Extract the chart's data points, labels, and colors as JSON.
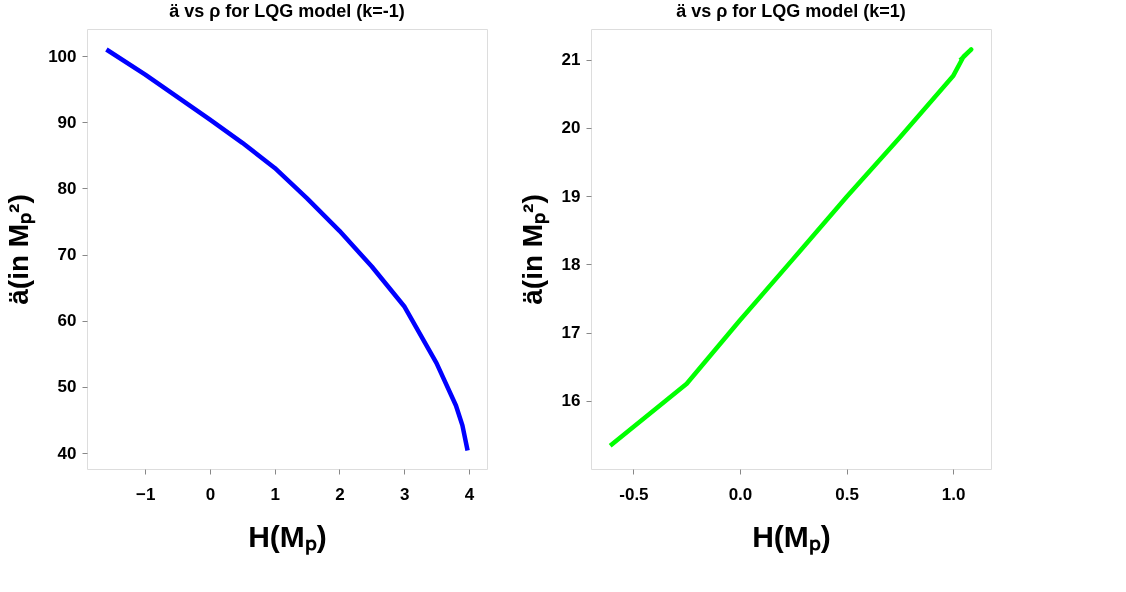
{
  "chart_data": [
    {
      "type": "line",
      "title": "ä vs ρ for LQG model (k=-1)",
      "xlabel": "H(Mₚ)",
      "ylabel": "ä(in Mₚ²)",
      "x": [
        -1.6,
        -1.0,
        0.0,
        0.5,
        1.0,
        1.5,
        2.0,
        2.5,
        3.0,
        3.5,
        3.8,
        3.9,
        3.98
      ],
      "series": [
        {
          "color": "#0000ff",
          "values": [
            101.0,
            97.2,
            90.4,
            86.9,
            83.1,
            78.5,
            73.6,
            68.2,
            62.2,
            53.6,
            47.2,
            44.2,
            40.4
          ]
        }
      ],
      "xlim": [
        -1.9,
        4.28
      ],
      "xticks": [
        -1,
        0,
        1,
        2,
        3,
        4
      ],
      "ylim": [
        37.6,
        104.1
      ],
      "yticks": [
        40,
        50,
        60,
        70,
        80,
        90,
        100
      ],
      "grid": false
    },
    {
      "type": "line",
      "title": "ä vs ρ for LQG model (k=1)",
      "xlabel": "H(Mₚ)",
      "ylabel": "ä(in Mₚ²)",
      "x": [
        -0.609,
        -0.25,
        0.0,
        0.25,
        0.501,
        0.75,
        1.0,
        1.05,
        1.085,
        1.033
      ],
      "series": [
        {
          "color": "#00ff00",
          "values": [
            15.34,
            16.25,
            17.18,
            18.08,
            18.99,
            19.86,
            20.76,
            21.05,
            21.15,
            20.99
          ]
        }
      ],
      "xlim": [
        -0.699,
        1.178
      ],
      "xticks": [
        {
          "value": -0.5,
          "label": "-0.5"
        },
        {
          "value": 0,
          "label": "0.0"
        },
        {
          "value": 0.5,
          "label": "0.5"
        },
        {
          "value": 1,
          "label": "1.0"
        }
      ],
      "ylim": [
        15.0,
        21.45
      ],
      "yticks": [
        16,
        17,
        18,
        19,
        20,
        21
      ],
      "grid": false
    }
  ]
}
